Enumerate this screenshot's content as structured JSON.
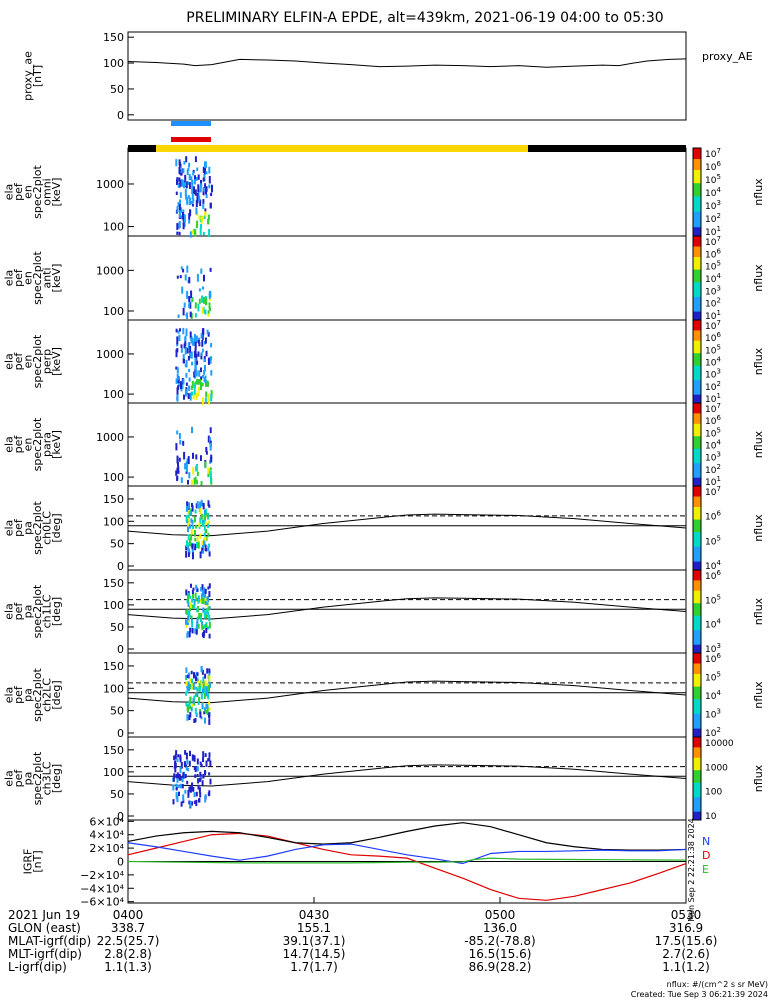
{
  "title": "PRELIMINARY ELFIN-A EPDE, alt=439km, 2021-06-19 04:00 to 05:30",
  "chart_data": [
    {
      "type": "line",
      "ylabel": [
        "proxy_ae",
        "[nT]"
      ],
      "yticks": [
        "150",
        "100",
        "50",
        "0"
      ],
      "ylim": [
        -10,
        160
      ],
      "legend": "proxy_AE",
      "series": [
        {
          "name": "proxy_AE",
          "x": [
            0,
            0.05,
            0.1,
            0.12,
            0.15,
            0.2,
            0.25,
            0.3,
            0.35,
            0.4,
            0.45,
            0.5,
            0.55,
            0.6,
            0.65,
            0.7,
            0.75,
            0.8,
            0.85,
            0.88,
            0.9,
            0.93,
            0.97,
            1.0
          ],
          "values": [
            103,
            101,
            98,
            95,
            97,
            107,
            106,
            104,
            100,
            97,
            93,
            94,
            96,
            95,
            93,
            95,
            92,
            94,
            96,
            95,
            99,
            104,
            107,
            108
          ]
        }
      ]
    },
    {
      "type": "heatmap",
      "ylabel": [
        "ela",
        "pef",
        "en",
        "spec2plot",
        "omni",
        "[keV]"
      ],
      "yticks": [
        "1000",
        "100"
      ],
      "scale": "log",
      "cbar_label": "nflux",
      "cbar_ticks": [
        "10^7",
        "10^6",
        "10^5",
        "10^4",
        "10^3",
        "10^2",
        "10^1"
      ]
    },
    {
      "type": "heatmap",
      "ylabel": [
        "ela",
        "pef",
        "en",
        "spec2plot",
        "anti",
        "[keV]"
      ],
      "yticks": [
        "1000",
        "100"
      ],
      "scale": "log",
      "cbar_label": "nflux",
      "cbar_ticks": [
        "10^7",
        "10^6",
        "10^5",
        "10^4",
        "10^3",
        "10^2",
        "10^1"
      ]
    },
    {
      "type": "heatmap",
      "ylabel": [
        "ela",
        "pef",
        "en",
        "spec2plot",
        "perp",
        "[keV]"
      ],
      "yticks": [
        "1000",
        "100"
      ],
      "scale": "log",
      "cbar_label": "nflux",
      "cbar_ticks": [
        "10^7",
        "10^6",
        "10^5",
        "10^4",
        "10^3",
        "10^2",
        "10^1"
      ]
    },
    {
      "type": "heatmap",
      "ylabel": [
        "ela",
        "pef",
        "en",
        "spec2plot",
        "para",
        "[keV]"
      ],
      "yticks": [
        "1000",
        "100"
      ],
      "scale": "log",
      "cbar_label": "nflux",
      "cbar_ticks": [
        "10^7",
        "10^6",
        "10^5",
        "10^4",
        "10^3",
        "10^2",
        "10^1"
      ]
    },
    {
      "type": "heatmap",
      "ylabel": [
        "ela",
        "pef",
        "pa",
        "spec2plot",
        "ch0LC",
        "[deg]"
      ],
      "yticks": [
        "150",
        "100",
        "50",
        "0"
      ],
      "cbar_label": "nflux",
      "cbar_ticks": [
        "10^7",
        "10^6",
        "10^5",
        "10^4"
      ]
    },
    {
      "type": "heatmap",
      "ylabel": [
        "ela",
        "pef",
        "pa",
        "spec2plot",
        "ch1LC",
        "[deg]"
      ],
      "yticks": [
        "150",
        "100",
        "50",
        "0"
      ],
      "cbar_label": "nflux",
      "cbar_ticks": [
        "10^6",
        "10^5",
        "10^4",
        "10^3"
      ]
    },
    {
      "type": "heatmap",
      "ylabel": [
        "ela",
        "pef",
        "pa",
        "spec2plot",
        "ch2LC",
        "[deg]"
      ],
      "yticks": [
        "150",
        "100",
        "50",
        "0"
      ],
      "cbar_label": "nflux",
      "cbar_ticks": [
        "10^6",
        "10^5",
        "10^4",
        "10^3",
        "10^2"
      ]
    },
    {
      "type": "heatmap",
      "ylabel": [
        "ela",
        "pef",
        "pa",
        "spec2plot",
        "ch3LC",
        "[deg]"
      ],
      "yticks": [
        "150",
        "100",
        "50",
        "0"
      ],
      "cbar_label": "nflux",
      "cbar_ticks": [
        "10000",
        "1000",
        "100",
        "10"
      ]
    },
    {
      "type": "line",
      "ylabel": [
        "IGRF",
        "[nT]"
      ],
      "yticks": [
        "6×10⁴",
        "4×10⁴",
        "2×10⁴",
        "0",
        "−2×10⁴",
        "−4×10⁴",
        "−6×10⁴"
      ],
      "ylim": [
        -62000,
        62000
      ],
      "legend": [
        "N",
        "D",
        "E"
      ],
      "series": [
        {
          "name": "N",
          "x": [
            0,
            0.05,
            0.1,
            0.15,
            0.2,
            0.25,
            0.3,
            0.35,
            0.4,
            0.45,
            0.5,
            0.55,
            0.6,
            0.65,
            0.7,
            0.75,
            0.8,
            0.85,
            0.9,
            0.95,
            1.0
          ],
          "values": [
            10000,
            20000,
            30000,
            40000,
            42000,
            38000,
            28000,
            18000,
            10000,
            8000,
            5000,
            -10000,
            -25000,
            -42000,
            -55000,
            -58000,
            -52000,
            -42000,
            -32000,
            -18000,
            -3000
          ]
        },
        {
          "name": "D",
          "x": [
            0,
            0.05,
            0.1,
            0.15,
            0.2,
            0.25,
            0.3,
            0.35,
            0.4,
            0.45,
            0.5,
            0.55,
            0.6,
            0.65,
            0.7,
            0.75,
            0.8,
            0.85,
            0.9,
            0.95,
            1.0
          ],
          "values": [
            30000,
            38000,
            43000,
            45000,
            43000,
            36000,
            28000,
            26000,
            28000,
            36000,
            45000,
            53000,
            58000,
            52000,
            40000,
            28000,
            22000,
            18000,
            17000,
            17000,
            18000
          ]
        },
        {
          "name": "E",
          "x": [
            0,
            0.05,
            0.1,
            0.15,
            0.2,
            0.25,
            0.3,
            0.35,
            0.4,
            0.45,
            0.5,
            0.55,
            0.6,
            0.65,
            0.7,
            0.75,
            0.8,
            0.85,
            0.9,
            0.95,
            1.0
          ],
          "values": [
            28000,
            22000,
            15000,
            8000,
            2000,
            8000,
            18000,
            25000,
            26000,
            18000,
            10000,
            4000,
            -3000,
            12000,
            15000,
            15000,
            16000,
            17000,
            16000,
            16000,
            18000
          ]
        },
        {
          "name": "E-low",
          "x": [
            0,
            0.1,
            0.2,
            0.3,
            0.4,
            0.5,
            0.55,
            0.6,
            0.62,
            0.65,
            0.7,
            0.8,
            0.9,
            1.0
          ],
          "values": [
            0,
            -1000,
            -2000,
            -2000,
            -2000,
            -1000,
            -1000,
            -500,
            3000,
            5000,
            3500,
            3000,
            2500,
            2000
          ]
        }
      ]
    }
  ],
  "time_labels": [
    "0400",
    "0430",
    "0500",
    "0530"
  ],
  "date_label": "2021 Jun 19",
  "footer_rows": [
    {
      "label": "GLON (east)",
      "values": [
        "338.7",
        "155.1",
        "136.0",
        "316.9"
      ]
    },
    {
      "label": "MLAT-igrf(dip)",
      "values": [
        "22.5(25.7)",
        "39.1(37.1)",
        "-85.2(-78.8)",
        "17.5(15.6)"
      ]
    },
    {
      "label": "MLT-igrf(dip)",
      "values": [
        "2.8(2.8)",
        "14.7(14.5)",
        "16.5(15.6)",
        "2.7(2.6)"
      ]
    },
    {
      "label": "L-igrf(dip)",
      "values": [
        "1.1(1.3)",
        "1.7(1.7)",
        "86.9(28.2)",
        "1.1(1.2)"
      ]
    }
  ],
  "footnote_units": "nflux: #/(cm^2 s sr MeV)",
  "footnote_created": "Created: Tue Sep  3 06:21:39 2024",
  "side_stamp": "Mon Sep  2 22:21:38 2024"
}
